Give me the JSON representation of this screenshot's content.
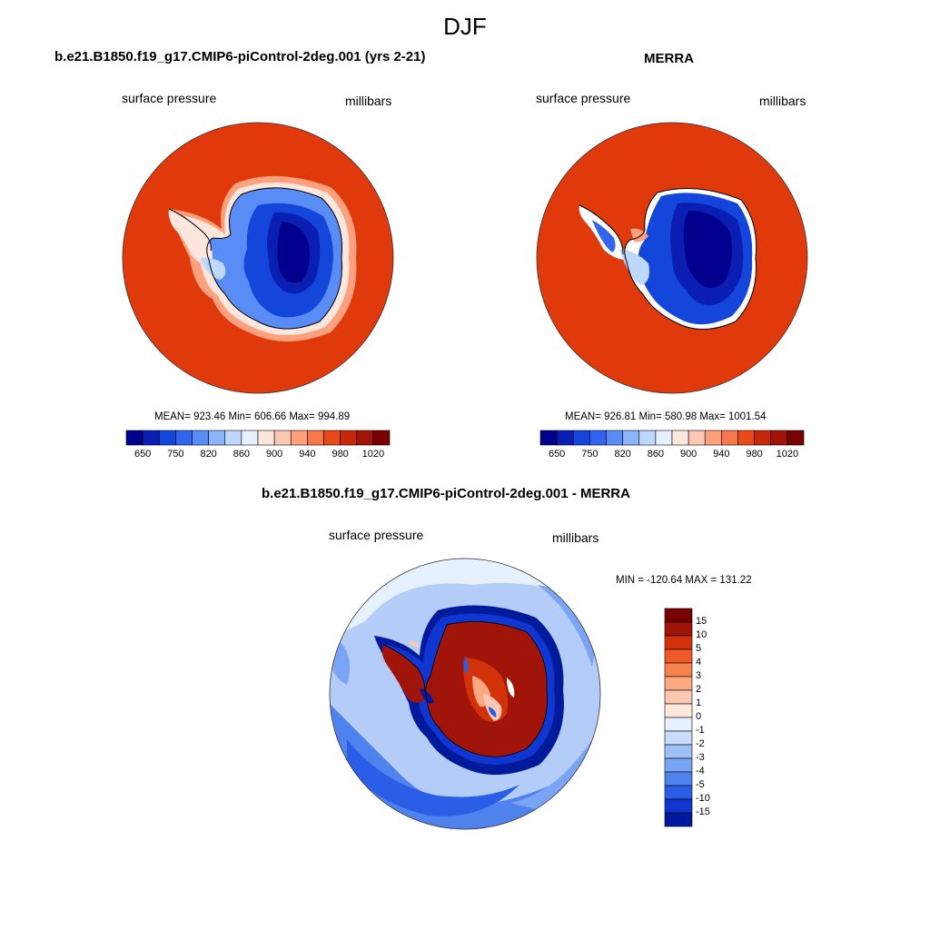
{
  "figure": {
    "season": "DJF"
  },
  "panels": {
    "model": {
      "title": "b.e21.B1850.f19_g17.CMIP6-piControl-2deg.001 (yrs 2-21)",
      "variable": "surface pressure",
      "units": "millibars",
      "stats": "MEAN= 923.46  Min= 606.66  Max= 994.89"
    },
    "obs": {
      "title": "MERRA",
      "variable": "surface pressure",
      "units": "millibars",
      "stats": "MEAN= 926.81  Min= 580.98  Max= 1001.54"
    },
    "diff": {
      "title": "b.e21.B1850.f19_g17.CMIP6-piControl-2deg.001 - MERRA",
      "variable": "surface pressure",
      "units": "millibars",
      "stats": "MIN = -120.64 MAX = 131.22"
    }
  },
  "colorbar_top": {
    "labels": [
      "650",
      "750",
      "820",
      "860",
      "900",
      "940",
      "980",
      "1020"
    ],
    "colors": [
      "#00008c",
      "#0a1eb4",
      "#1446dc",
      "#3264f0",
      "#5a8cf5",
      "#8cb4fa",
      "#bed8fc",
      "#e6f0ff",
      "#fde6dc",
      "#fcc8b4",
      "#fca07e",
      "#f8784e",
      "#e84a1a",
      "#c8280a",
      "#a0140a",
      "#780000"
    ]
  },
  "colorbar_diff": {
    "labels": [
      "15",
      "10",
      "5",
      "4",
      "3",
      "2",
      "1",
      "0",
      "-1",
      "-2",
      "-3",
      "-4",
      "-5",
      "-10",
      "-15"
    ],
    "colors": [
      "#780000",
      "#a0140a",
      "#d2320a",
      "#f05a28",
      "#f8824e",
      "#fca880",
      "#fcc8b4",
      "#fde8dc",
      "#e6f0ff",
      "#c8dcfc",
      "#a0c0f8",
      "#7aa4f4",
      "#5082ee",
      "#2a5ee6",
      "#1036d2",
      "#001a9c"
    ]
  },
  "colors": {
    "ocean_model": "#e03a0c",
    "ocean_obs": "#e03a0c",
    "diff_ocean": "#b4ccf8"
  }
}
